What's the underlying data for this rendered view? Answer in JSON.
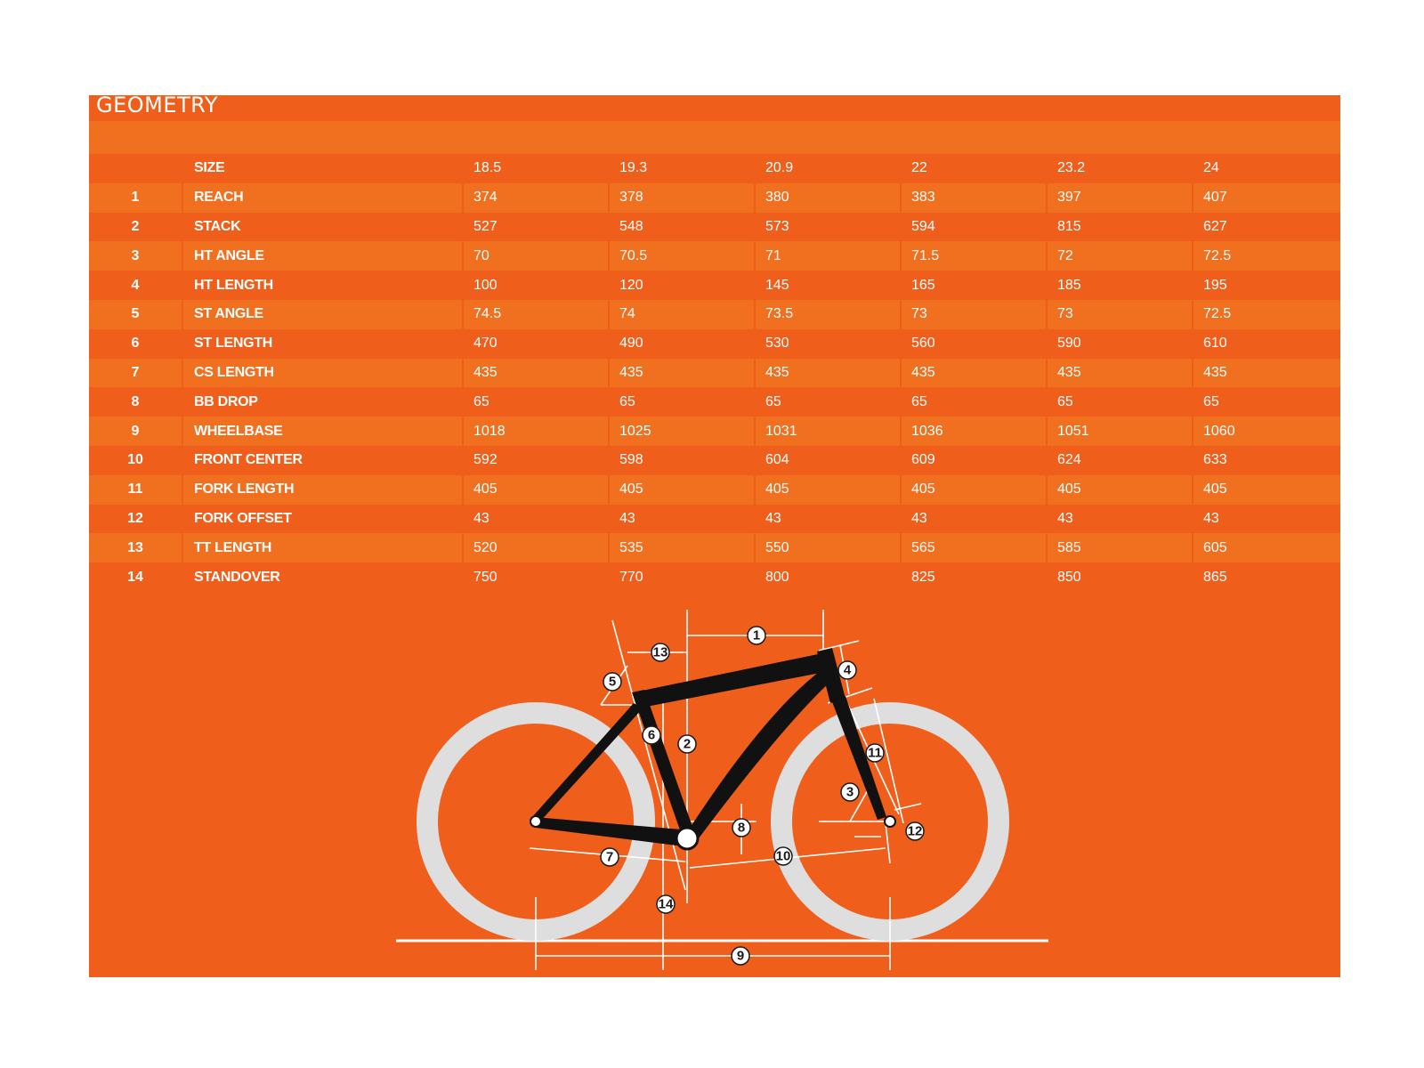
{
  "title": "GEOMETRY",
  "table": {
    "size_label": "SIZE",
    "sizes": [
      "18.5",
      "19.3",
      "20.9",
      "22",
      "23.2",
      "24"
    ],
    "rows": [
      {
        "num": "1",
        "label": "REACH",
        "values": [
          "374",
          "378",
          "380",
          "383",
          "397",
          "407"
        ]
      },
      {
        "num": "2",
        "label": "STACK",
        "values": [
          "527",
          "548",
          "573",
          "594",
          "815",
          "627"
        ]
      },
      {
        "num": "3",
        "label": "HT ANGLE",
        "values": [
          "70",
          "70.5",
          "71",
          "71.5",
          "72",
          "72.5"
        ]
      },
      {
        "num": "4",
        "label": "HT LENGTH",
        "values": [
          "100",
          "120",
          "145",
          "165",
          "185",
          "195"
        ]
      },
      {
        "num": "5",
        "label": "ST ANGLE",
        "values": [
          "74.5",
          "74",
          "73.5",
          "73",
          "73",
          "72.5"
        ]
      },
      {
        "num": "6",
        "label": "ST LENGTH",
        "values": [
          "470",
          "490",
          "530",
          "560",
          "590",
          "610"
        ]
      },
      {
        "num": "7",
        "label": "CS LENGTH",
        "values": [
          "435",
          "435",
          "435",
          "435",
          "435",
          "435"
        ]
      },
      {
        "num": "8",
        "label": "BB DROP",
        "values": [
          "65",
          "65",
          "65",
          "65",
          "65",
          "65"
        ]
      },
      {
        "num": "9",
        "label": "WHEELBASE",
        "values": [
          "1018",
          "1025",
          "1031",
          "1036",
          "1051",
          "1060"
        ]
      },
      {
        "num": "10",
        "label": "FRONT CENTER",
        "values": [
          "592",
          "598",
          "604",
          "609",
          "624",
          "633"
        ]
      },
      {
        "num": "11",
        "label": "FORK LENGTH",
        "values": [
          "405",
          "405",
          "405",
          "405",
          "405",
          "405"
        ]
      },
      {
        "num": "12",
        "label": "FORK OFFSET",
        "values": [
          "43",
          "43",
          "43",
          "43",
          "43",
          "43"
        ]
      },
      {
        "num": "13",
        "label": "TT LENGTH",
        "values": [
          "520",
          "535",
          "550",
          "565",
          "585",
          "605"
        ]
      },
      {
        "num": "14",
        "label": "STANDOVER",
        "values": [
          "750",
          "770",
          "800",
          "825",
          "850",
          "865"
        ]
      }
    ]
  },
  "diagram": {
    "callouts": [
      "1",
      "2",
      "3",
      "4",
      "5",
      "6",
      "7",
      "8",
      "9",
      "10",
      "11",
      "12",
      "13",
      "14"
    ]
  },
  "colors": {
    "panel": "#ef5f1b",
    "row_alt": "#f07020",
    "text": "#ffffff",
    "frame": "#111111",
    "tire": "#dedede"
  }
}
